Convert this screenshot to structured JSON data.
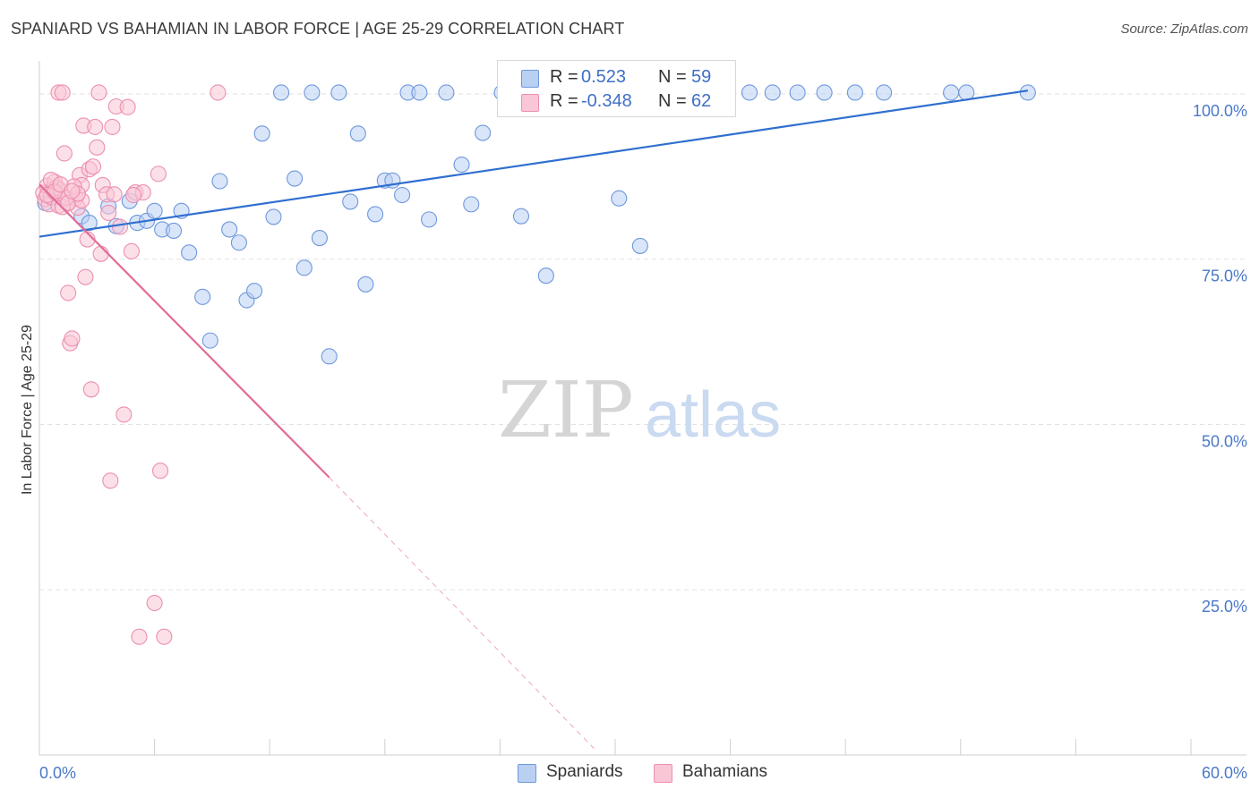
{
  "header": {
    "title": "SPANIARD VS BAHAMIAN IN LABOR FORCE | AGE 25-29 CORRELATION CHART",
    "source": "Source: ZipAtlas.com"
  },
  "watermark": {
    "zip": "ZIP",
    "atlas": "atlas"
  },
  "legend_top": [
    {
      "r_label": "R =",
      "r_value": "0.523",
      "n_label": "N =",
      "n_value": "59"
    },
    {
      "r_label": "R =",
      "r_value": "-0.348",
      "n_label": "N =",
      "n_value": "62"
    }
  ],
  "legend_bottom": {
    "spaniards": "Spaniards",
    "bahamians": "Bahamians"
  },
  "colors": {
    "blue_fill": "#b9d0f3",
    "blue_stroke": "#6f98dc",
    "blue_line": "#2f6fd0",
    "pink_fill": "#f9c6d6",
    "pink_stroke": "#ec8fb0",
    "pink_line": "#e26b98",
    "tick_text": "#4a78c8",
    "grid": "#e2e2e2"
  },
  "chart_data": {
    "type": "scatter",
    "title": "SPANIARD VS BAHAMIAN IN LABOR FORCE | AGE 25-29 CORRELATION CHART",
    "xlabel": "",
    "ylabel": "In Labor Force | Age 25-29",
    "xlim": [
      0,
      60
    ],
    "ylim": [
      0,
      105
    ],
    "x_tick_labels": [
      "0.0%",
      "60.0%"
    ],
    "y_ticks": [
      25,
      50,
      75,
      100
    ],
    "y_tick_labels": [
      "25.0%",
      "50.0%",
      "75.0%",
      "100.0%"
    ],
    "grid": true,
    "series": [
      {
        "name": "Spaniards",
        "R": 0.523,
        "N": 59,
        "trend": {
          "x": [
            0,
            51.5
          ],
          "y": [
            78.4,
            100.5
          ],
          "style": "solid"
        },
        "points": [
          [
            0.3,
            83.5
          ],
          [
            1.5,
            83.5
          ],
          [
            2.2,
            81.5
          ],
          [
            2.6,
            80.5
          ],
          [
            3.6,
            83.0
          ],
          [
            4.0,
            80.0
          ],
          [
            4.7,
            83.8
          ],
          [
            5.1,
            80.5
          ],
          [
            5.6,
            80.8
          ],
          [
            6.0,
            82.3
          ],
          [
            6.4,
            79.5
          ],
          [
            7.0,
            79.3
          ],
          [
            7.4,
            82.3
          ],
          [
            7.8,
            76.0
          ],
          [
            8.5,
            69.3
          ],
          [
            8.9,
            62.7
          ],
          [
            9.4,
            86.8
          ],
          [
            9.9,
            79.5
          ],
          [
            10.4,
            77.5
          ],
          [
            10.8,
            68.8
          ],
          [
            11.2,
            70.2
          ],
          [
            11.6,
            94.0
          ],
          [
            12.2,
            81.4
          ],
          [
            12.6,
            100.2
          ],
          [
            13.3,
            87.2
          ],
          [
            13.8,
            73.7
          ],
          [
            14.2,
            100.2
          ],
          [
            14.6,
            78.2
          ],
          [
            15.1,
            60.3
          ],
          [
            15.6,
            100.2
          ],
          [
            16.2,
            83.7
          ],
          [
            16.6,
            94.0
          ],
          [
            17.0,
            71.2
          ],
          [
            17.5,
            81.8
          ],
          [
            18.0,
            86.9
          ],
          [
            18.4,
            86.9
          ],
          [
            18.9,
            84.7
          ],
          [
            19.2,
            100.2
          ],
          [
            19.8,
            100.2
          ],
          [
            20.3,
            81.0
          ],
          [
            21.2,
            100.2
          ],
          [
            22.0,
            89.3
          ],
          [
            22.5,
            83.3
          ],
          [
            23.1,
            94.1
          ],
          [
            24.1,
            100.2
          ],
          [
            25.1,
            81.5
          ],
          [
            26.4,
            72.5
          ],
          [
            28.4,
            100.2
          ],
          [
            30.2,
            84.2
          ],
          [
            31.3,
            77.0
          ],
          [
            37.0,
            100.2
          ],
          [
            38.2,
            100.2
          ],
          [
            39.5,
            100.2
          ],
          [
            40.9,
            100.2
          ],
          [
            42.5,
            100.2
          ],
          [
            44.0,
            100.2
          ],
          [
            47.5,
            100.2
          ],
          [
            48.3,
            100.2
          ],
          [
            51.5,
            100.2
          ]
        ]
      },
      {
        "name": "Bahamians",
        "R": -0.348,
        "N": 62,
        "trend": {
          "x": [
            0,
            15.1
          ],
          "y": [
            86.3,
            42.0
          ],
          "style": "solid",
          "extended": {
            "x": [
              15.1,
              28.9
            ],
            "y": [
              42.0,
              1.0
            ],
            "style": "dashed"
          }
        },
        "points": [
          [
            0.2,
            85.0
          ],
          [
            0.3,
            84.1
          ],
          [
            0.4,
            86.1
          ],
          [
            0.5,
            83.3
          ],
          [
            0.6,
            84.4
          ],
          [
            0.7,
            85.6
          ],
          [
            0.8,
            86.7
          ],
          [
            0.9,
            84.9
          ],
          [
            1.0,
            83.1
          ],
          [
            1.1,
            85.4
          ],
          [
            1.2,
            82.9
          ],
          [
            1.3,
            91.0
          ],
          [
            1.4,
            84.3
          ],
          [
            1.5,
            69.9
          ],
          [
            1.6,
            62.3
          ],
          [
            1.7,
            63.0
          ],
          [
            1.9,
            84.2
          ],
          [
            2.0,
            82.8
          ],
          [
            2.1,
            87.7
          ],
          [
            2.2,
            86.2
          ],
          [
            2.3,
            95.2
          ],
          [
            2.4,
            72.3
          ],
          [
            2.5,
            78.0
          ],
          [
            2.6,
            88.6
          ],
          [
            2.7,
            55.3
          ],
          [
            2.8,
            89.0
          ],
          [
            2.9,
            95.0
          ],
          [
            3.0,
            91.9
          ],
          [
            3.1,
            100.2
          ],
          [
            3.2,
            75.8
          ],
          [
            3.3,
            86.2
          ],
          [
            3.5,
            84.8
          ],
          [
            3.6,
            82.0
          ],
          [
            3.7,
            41.5
          ],
          [
            3.8,
            95.0
          ],
          [
            4.0,
            98.1
          ],
          [
            4.2,
            79.9
          ],
          [
            4.4,
            51.5
          ],
          [
            4.6,
            98.0
          ],
          [
            4.8,
            76.2
          ],
          [
            5.0,
            85.1
          ],
          [
            5.2,
            17.9
          ],
          [
            5.4,
            85.1
          ],
          [
            6.0,
            23.0
          ],
          [
            6.2,
            87.9
          ],
          [
            6.3,
            43.0
          ],
          [
            6.5,
            17.9
          ],
          [
            9.3,
            100.2
          ],
          [
            1.0,
            100.2
          ],
          [
            1.2,
            100.2
          ],
          [
            0.9,
            85.8
          ],
          [
            1.5,
            83.5
          ],
          [
            0.6,
            87.0
          ],
          [
            0.4,
            84.7
          ],
          [
            2.2,
            83.9
          ],
          [
            1.8,
            86.0
          ],
          [
            0.8,
            85.2
          ],
          [
            1.1,
            86.3
          ],
          [
            2.0,
            84.9
          ],
          [
            1.7,
            85.3
          ],
          [
            3.9,
            84.8
          ],
          [
            4.9,
            84.7
          ]
        ]
      }
    ]
  }
}
